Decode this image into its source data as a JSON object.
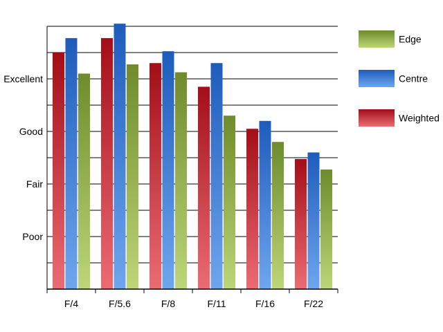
{
  "chart_data": {
    "type": "bar",
    "categories": [
      "F/4",
      "F/5.6",
      "F/8",
      "F/11",
      "F/16",
      "F/22"
    ],
    "series": [
      {
        "name": "Weighted",
        "values": [
          9.0,
          9.55,
          8.6,
          7.7,
          6.1,
          4.95
        ]
      },
      {
        "name": "Centre",
        "values": [
          9.55,
          10.1,
          9.05,
          8.6,
          6.4,
          5.2
        ]
      },
      {
        "name": "Edge",
        "values": [
          8.2,
          8.55,
          8.25,
          6.6,
          5.6,
          4.55
        ]
      }
    ],
    "y_ticks": [
      {
        "value": 2,
        "label": "Poor"
      },
      {
        "value": 4,
        "label": "Fair"
      },
      {
        "value": 6,
        "label": "Good"
      },
      {
        "value": 8,
        "label": "Excellent"
      }
    ],
    "ylim": [
      0,
      10
    ],
    "grid_step": 1,
    "grid": true,
    "legend_position": "right",
    "legend_order": [
      "Edge",
      "Centre",
      "Weighted"
    ],
    "colors": {
      "Weighted": {
        "top": "#a30e18",
        "bottom": "#ec6c74"
      },
      "Centre": {
        "top": "#1e5cbc",
        "bottom": "#6ea6ee"
      },
      "Edge": {
        "top": "#6e8c2c",
        "bottom": "#bcd678"
      }
    },
    "title": "",
    "xlabel": "",
    "ylabel": ""
  }
}
